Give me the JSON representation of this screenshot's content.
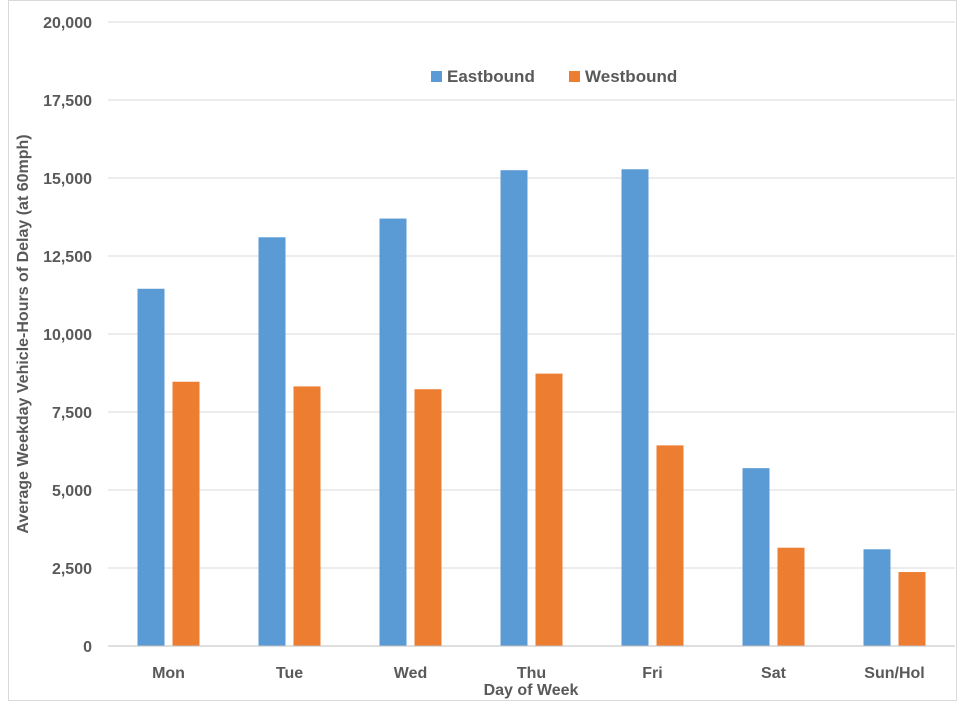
{
  "chart_data": {
    "type": "bar",
    "title": "",
    "xlabel": "Day of Week",
    "ylabel": "Average Weekday Vehicle-Hours of Delay (at 60mph)",
    "categories": [
      "Mon",
      "Tue",
      "Wed",
      "Thu",
      "Fri",
      "Sat",
      "Sun/Hol"
    ],
    "series": [
      {
        "name": "Eastbound",
        "color": "#5B9BD5",
        "values": [
          11450,
          13100,
          13700,
          15250,
          15280,
          5700,
          3100
        ]
      },
      {
        "name": "Westbound",
        "color": "#ED7D31",
        "values": [
          8470,
          8320,
          8230,
          8730,
          6430,
          3150,
          2370
        ]
      }
    ],
    "ylim": [
      0,
      20000
    ],
    "yticks": [
      "0",
      "2,500",
      "5,000",
      "7,500",
      "10,000",
      "12,500",
      "15,000",
      "17,500",
      "20,000"
    ],
    "ytick_values": [
      0,
      2500,
      5000,
      7500,
      10000,
      12500,
      15000,
      17500,
      20000
    ],
    "grid": true,
    "legend": "top-center"
  }
}
